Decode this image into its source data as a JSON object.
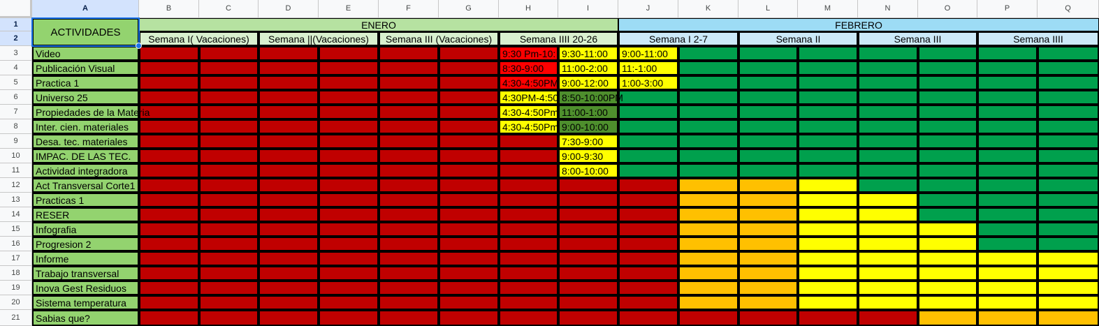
{
  "columns": [
    "A",
    "B",
    "C",
    "D",
    "E",
    "F",
    "G",
    "H",
    "I",
    "J",
    "K",
    "L",
    "M",
    "N",
    "O",
    "P",
    "Q"
  ],
  "row_numbers": [
    "1",
    "2",
    "3",
    "4",
    "5",
    "6",
    "7",
    "8",
    "9",
    "10",
    "11",
    "12",
    "13",
    "14",
    "15",
    "16",
    "17",
    "18",
    "19",
    "20",
    "21"
  ],
  "header": {
    "actividades": "ACTIVIDADES",
    "month_enero": "ENERO",
    "month_febrero": "FEBRERO",
    "weeks": [
      "Semana I( Vacaciones)",
      "Semana ||(Vacaciones)",
      "Semana III (Vacaciones)",
      "Semana IIII 20-26",
      "Semana I 2-7",
      "Semana II",
      "Semana III",
      "Semana IIII"
    ]
  },
  "activities": [
    "Video",
    "Publicación Visual",
    "Practica 1",
    "Universo 25",
    "Propiedades de la Materia",
    "Inter. cien.  materiales",
    "Desa. tec. materiales",
    "IMPAC. DE LAS TEC.",
    "Actividad integradora",
    "Act Transversal Corte1",
    "Practicas 1",
    "RESER",
    "Infografia",
    "Progresion 2",
    "Informe",
    "Trabajo transversal",
    "Inova Gest Residuos",
    "Sistema temperatura",
    "Sabias que?"
  ],
  "colors": {
    "dark_red": "#c00000",
    "red": "#ff0000",
    "yellow": "#ffff00",
    "orange": "#ffc000",
    "green": "#00a04d",
    "dark_green": "#4e8f2d",
    "activity_green": "#93d36f",
    "enero_green": "#b6e2a1",
    "febrero_blue": "#9ddcf5",
    "week_blue": "#cce9f8"
  },
  "cells": {
    "3": {
      "H": {
        "text": "9:30 Pm-10:",
        "fill": "red",
        "color": "#000000"
      },
      "I": {
        "text": "9:30-11:00",
        "fill": "yellow"
      },
      "J": {
        "text": "9:00-11:00",
        "fill": "yellow"
      }
    },
    "4": {
      "H": {
        "text": "8:30-9:00",
        "fill": "red",
        "color": "#000000"
      },
      "I": {
        "text": "11:00-2:00",
        "fill": "yellow"
      },
      "J": {
        "text": "11:-1:00",
        "fill": "yellow"
      }
    },
    "5": {
      "H": {
        "text": "4:30-4:50PM",
        "fill": "red",
        "color": "#000000"
      },
      "I": {
        "text": "9:00-12:00",
        "fill": "yellow"
      },
      "J": {
        "text": "1:00-3:00",
        "fill": "yellow"
      }
    },
    "6": {
      "H": {
        "text": "4:30PM-4:50",
        "fill": "yellow"
      },
      "I": {
        "text": "8:50-10:00PM",
        "fill": "dark_green",
        "spill": true
      }
    },
    "7": {
      "H": {
        "text": "4:30-4:50Pm",
        "fill": "yellow"
      },
      "I": {
        "text": "11:00-1:00",
        "fill": "dark_green"
      }
    },
    "8": {
      "H": {
        "text": "4:30-4:50Pm",
        "fill": "yellow"
      },
      "I": {
        "text": "9:00-10:00",
        "fill": "dark_green"
      }
    },
    "9": {
      "I": {
        "text": "7:30-9:00",
        "fill": "yellow"
      }
    },
    "10": {
      "I": {
        "text": "9:00-9:30",
        "fill": "yellow"
      }
    },
    "11": {
      "I": {
        "text": "8:00-10:00",
        "fill": "yellow"
      }
    }
  }
}
